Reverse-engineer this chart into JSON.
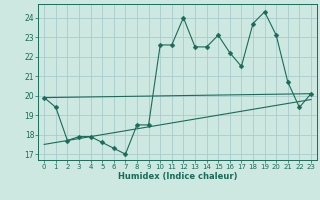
{
  "title": "",
  "xlabel": "Humidex (Indice chaleur)",
  "ylabel": "",
  "bg_color": "#cce8e0",
  "grid_color": "#aacccc",
  "line_color": "#1a6b5a",
  "xlim": [
    -0.5,
    23.5
  ],
  "ylim": [
    16.7,
    24.7
  ],
  "yticks": [
    17,
    18,
    19,
    20,
    21,
    22,
    23,
    24
  ],
  "xticks": [
    0,
    1,
    2,
    3,
    4,
    5,
    6,
    7,
    8,
    9,
    10,
    11,
    12,
    13,
    14,
    15,
    16,
    17,
    18,
    19,
    20,
    21,
    22,
    23
  ],
  "line1_x": [
    0,
    1,
    2,
    3,
    4,
    5,
    6,
    7,
    8,
    9,
    10,
    11,
    12,
    13,
    14,
    15,
    16,
    17,
    18,
    19,
    20,
    21,
    22,
    23
  ],
  "line1_y": [
    19.9,
    19.4,
    17.7,
    17.9,
    17.9,
    17.6,
    17.3,
    17.0,
    18.5,
    18.5,
    22.6,
    22.6,
    24.0,
    22.5,
    22.5,
    23.1,
    22.2,
    21.5,
    23.7,
    24.3,
    23.1,
    20.7,
    19.4,
    20.1
  ],
  "line2_x": [
    0,
    23
  ],
  "line2_y": [
    19.9,
    20.1
  ],
  "line3_x": [
    0,
    23
  ],
  "line3_y": [
    17.5,
    19.8
  ],
  "marker_size": 2.5
}
